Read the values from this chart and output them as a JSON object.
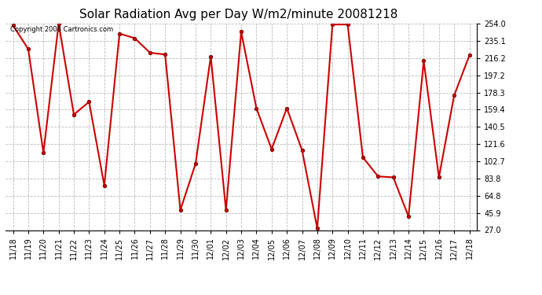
{
  "title": "Solar Radiation Avg per Day W/m2/minute 20081218",
  "copyright_text": "Copyright 2008 Cartronics.com",
  "labels": [
    "11/18",
    "11/19",
    "11/20",
    "11/21",
    "11/22",
    "11/23",
    "11/24",
    "11/25",
    "11/26",
    "11/27",
    "11/28",
    "11/29",
    "11/30",
    "12/01",
    "12/02",
    "12/03",
    "12/04",
    "12/05",
    "12/06",
    "12/07",
    "12/08",
    "12/09",
    "12/10",
    "12/11",
    "12/12",
    "12/13",
    "12/14",
    "12/15",
    "12/16",
    "12/17",
    "12/18"
  ],
  "values": [
    252.0,
    226.0,
    112.0,
    254.0,
    154.0,
    168.0,
    76.0,
    243.0,
    238.0,
    222.0,
    220.0,
    49.0,
    100.0,
    218.0,
    49.0,
    245.0,
    161.0,
    116.0,
    161.0,
    115.0,
    29.0,
    253.0,
    253.0,
    107.0,
    86.0,
    85.0,
    42.0,
    213.0,
    85.0,
    175.0,
    219.0
  ],
  "yticks": [
    27.0,
    45.9,
    64.8,
    83.8,
    102.7,
    121.6,
    140.5,
    159.4,
    178.3,
    197.2,
    216.2,
    235.1,
    254.0
  ],
  "line_color": "#cc0000",
  "marker": "o",
  "background_color": "#ffffff",
  "grid_color": "#bbbbbb",
  "title_fontsize": 11,
  "tick_fontsize": 7,
  "ylim": [
    27.0,
    254.0
  ]
}
